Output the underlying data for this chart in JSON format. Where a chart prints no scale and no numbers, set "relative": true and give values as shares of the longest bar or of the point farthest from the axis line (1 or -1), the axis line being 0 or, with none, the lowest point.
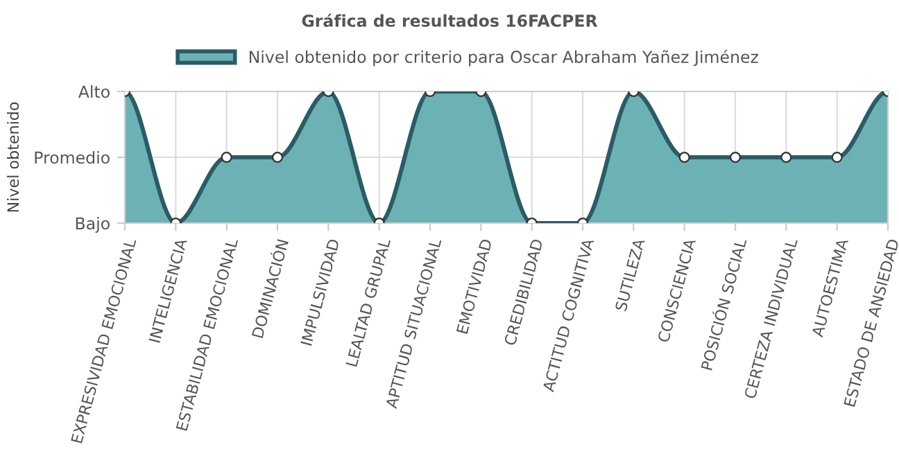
{
  "chart_data": {
    "type": "area",
    "title": "Gráfica de resultados 16FACPER",
    "ylabel": "Nivel obtenido",
    "categories": [
      "EXPRESIVIDAD EMOCIONAL",
      "INTELIGENCIA",
      "ESTABILIDAD EMOCIONAL",
      "DOMINACIÓN",
      "IMPULSIVIDAD",
      "LEALTAD GRUPAL",
      "APTITUD SITUACIONAL",
      "EMOTIVIDAD",
      "CREDIBILIDAD",
      "ACTITUD COGNITIVA",
      "SUTILEZA",
      "CONSCIENCIA",
      "POSICIÓN SOCIAL",
      "CERTEZA INDIVIDUAL",
      "AUTOESTIMA",
      "ESTADO DE ANSIEDAD"
    ],
    "y_categories": [
      "Alto",
      "Promedio",
      "Bajo"
    ],
    "series": [
      {
        "name": "Nivel obtenido por criterio para Oscar Abraham Yañez Jiménez",
        "color": "#6cb2b5",
        "values": [
          1,
          0,
          0.5,
          0.5,
          1,
          0,
          1,
          1,
          0,
          0,
          1,
          0.5,
          0.5,
          0.5,
          0.5,
          1
        ]
      }
    ],
    "relative": true,
    "grid": true,
    "legend": "top",
    "marker": "circle",
    "line_style": "solid"
  }
}
